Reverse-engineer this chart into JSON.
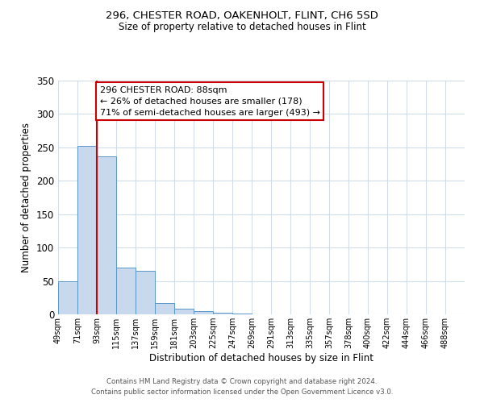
{
  "title1": "296, CHESTER ROAD, OAKENHOLT, FLINT, CH6 5SD",
  "title2": "Size of property relative to detached houses in Flint",
  "xlabel": "Distribution of detached houses by size in Flint",
  "ylabel": "Number of detached properties",
  "bin_labels": [
    "49sqm",
    "71sqm",
    "93sqm",
    "115sqm",
    "137sqm",
    "159sqm",
    "181sqm",
    "203sqm",
    "225sqm",
    "247sqm",
    "269sqm",
    "291sqm",
    "313sqm",
    "335sqm",
    "357sqm",
    "378sqm",
    "400sqm",
    "422sqm",
    "444sqm",
    "466sqm",
    "488sqm"
  ],
  "bar_heights": [
    50,
    252,
    237,
    70,
    65,
    17,
    9,
    5,
    3,
    1,
    0,
    0,
    0,
    0,
    0,
    0,
    0,
    0,
    0,
    0,
    0
  ],
  "bar_color": "#c9d9ed",
  "bar_edge_color": "#5a96c8",
  "vline_x": 2,
  "vline_color": "#cc0000",
  "annotation_title": "296 CHESTER ROAD: 88sqm",
  "annotation_line1": "← 26% of detached houses are smaller (178)",
  "annotation_line2": "71% of semi-detached houses are larger (493) →",
  "annotation_box_color": "#ffffff",
  "annotation_box_edge": "#cc0000",
  "ylim": [
    0,
    350
  ],
  "yticks": [
    0,
    50,
    100,
    150,
    200,
    250,
    300,
    350
  ],
  "footer1": "Contains HM Land Registry data © Crown copyright and database right 2024.",
  "footer2": "Contains public sector information licensed under the Open Government Licence v3.0.",
  "bg_color": "#ffffff",
  "grid_color": "#d0dde8"
}
